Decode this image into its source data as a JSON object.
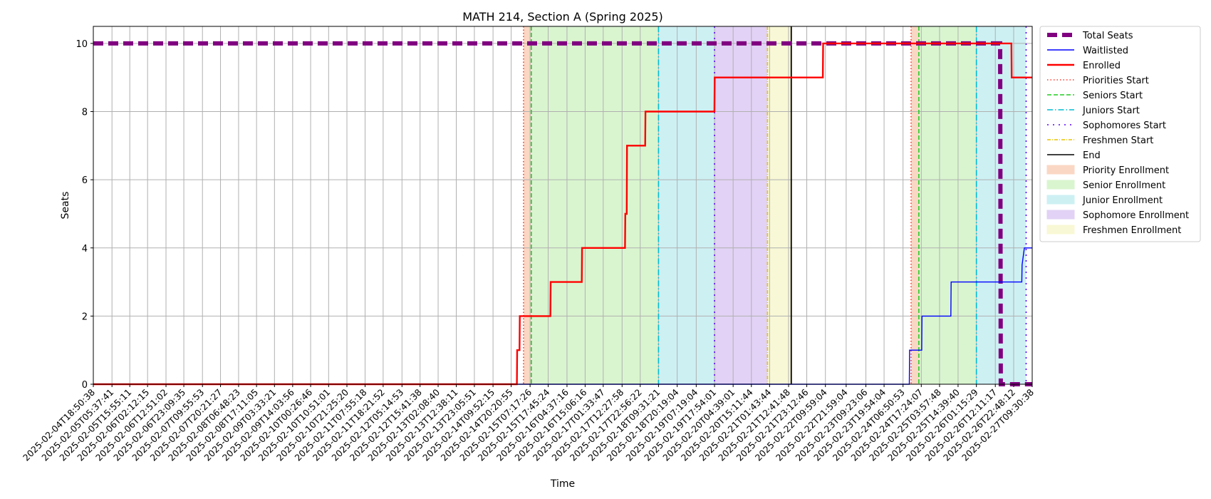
{
  "chart_data": {
    "type": "line",
    "title": "MATH 214, Section A (Spring 2025)",
    "xlabel": "Time",
    "ylabel": "Seats",
    "ylim": [
      0,
      10.5
    ],
    "yticks": [
      0,
      2,
      4,
      6,
      8,
      10
    ],
    "xlim": [
      "2025-02-04T18:50:38",
      "2025-02-27T09:30:38"
    ],
    "grid": true,
    "legend_position": "outside-right",
    "xtick_labels": [
      "2025-02-04T18:50:38",
      "2025-02-05T05:37:41",
      "2025-02-05T15:55:11",
      "2025-02-06T02:12:15",
      "2025-02-06T12:51:02",
      "2025-02-06T23:09:35",
      "2025-02-07T09:55:53",
      "2025-02-07T20:21:27",
      "2025-02-08T06:48:23",
      "2025-02-08T17:11:05",
      "2025-02-09T03:33:21",
      "2025-02-09T14:03:56",
      "2025-02-10T00:26:46",
      "2025-02-10T10:51:01",
      "2025-02-10T21:25:20",
      "2025-02-11T07:55:18",
      "2025-02-11T18:21:52",
      "2025-02-12T05:14:53",
      "2025-02-12T15:41:38",
      "2025-02-13T02:08:40",
      "2025-02-13T12:38:11",
      "2025-02-13T23:05:51",
      "2025-02-14T09:52:15",
      "2025-02-14T20:20:55",
      "2025-02-15T07:17:26",
      "2025-02-15T17:45:24",
      "2025-02-16T04:37:16",
      "2025-02-16T15:06:16",
      "2025-02-17T01:33:47",
      "2025-02-17T12:27:58",
      "2025-02-17T22:56:22",
      "2025-02-18T09:31:21",
      "2025-02-18T20:19:04",
      "2025-02-19T07:19:04",
      "2025-02-19T17:54:01",
      "2025-02-20T04:39:01",
      "2025-02-20T15:11:44",
      "2025-02-21T01:43:44",
      "2025-02-21T12:41:48",
      "2025-02-21T23:12:46",
      "2025-02-22T09:59:04",
      "2025-02-22T21:59:04",
      "2025-02-23T09:23:06",
      "2025-02-23T19:54:04",
      "2025-02-24T06:50:53",
      "2025-02-24T17:24:07",
      "2025-02-25T03:57:48",
      "2025-02-25T14:39:40",
      "2025-02-26T01:15:29",
      "2025-02-26T12:11:17",
      "2025-02-26T22:48:12",
      "2025-02-27T09:30:38"
    ],
    "series": [
      {
        "name": "Total Seats",
        "color": "#800080",
        "style": "dashed-thick",
        "points": [
          {
            "x": "2025-02-04T18:50:38",
            "y": 10
          },
          {
            "x": "2025-02-26T15:00:00",
            "y": 10
          },
          {
            "x": "2025-02-26T15:20:00",
            "y": 0
          },
          {
            "x": "2025-02-27T09:30:38",
            "y": 0
          }
        ]
      },
      {
        "name": "Waitlisted",
        "color": "#0000ff",
        "style": "solid",
        "points": [
          {
            "x": "2025-02-04T18:50:38",
            "y": 0
          },
          {
            "x": "2025-02-24T10:30:00",
            "y": 0
          },
          {
            "x": "2025-02-24T10:40:00",
            "y": 1
          },
          {
            "x": "2025-02-24T17:40:00",
            "y": 1
          },
          {
            "x": "2025-02-24T17:50:00",
            "y": 2
          },
          {
            "x": "2025-02-25T10:30:00",
            "y": 2
          },
          {
            "x": "2025-02-25T10:40:00",
            "y": 3
          },
          {
            "x": "2025-02-27T03:30:00",
            "y": 3
          },
          {
            "x": "2025-02-27T03:40:00",
            "y": 3.5
          },
          {
            "x": "2025-02-27T05:00:00",
            "y": 4
          },
          {
            "x": "2025-02-27T09:30:38",
            "y": 4
          }
        ]
      },
      {
        "name": "Enrolled",
        "color": "#ff0000",
        "style": "solid",
        "points": [
          {
            "x": "2025-02-04T18:50:38",
            "y": 0
          },
          {
            "x": "2025-02-14T23:40:00",
            "y": 0
          },
          {
            "x": "2025-02-14T23:50:00",
            "y": 1
          },
          {
            "x": "2025-02-15T01:10:00",
            "y": 1
          },
          {
            "x": "2025-02-15T01:20:00",
            "y": 2
          },
          {
            "x": "2025-02-15T19:00:00",
            "y": 2
          },
          {
            "x": "2025-02-15T19:10:00",
            "y": 3
          },
          {
            "x": "2025-02-16T13:10:00",
            "y": 3
          },
          {
            "x": "2025-02-16T13:20:00",
            "y": 4
          },
          {
            "x": "2025-02-17T14:10:00",
            "y": 4
          },
          {
            "x": "2025-02-17T14:20:00",
            "y": 5
          },
          {
            "x": "2025-02-17T15:10:00",
            "y": 5
          },
          {
            "x": "2025-02-17T15:20:00",
            "y": 7
          },
          {
            "x": "2025-02-18T01:50:00",
            "y": 7
          },
          {
            "x": "2025-02-18T02:00:00",
            "y": 8
          },
          {
            "x": "2025-02-19T17:50:00",
            "y": 8
          },
          {
            "x": "2025-02-19T18:00:00",
            "y": 9
          },
          {
            "x": "2025-02-22T08:30:00",
            "y": 9
          },
          {
            "x": "2025-02-22T08:40:00",
            "y": 10
          },
          {
            "x": "2025-02-26T21:30:00",
            "y": 10
          },
          {
            "x": "2025-02-26T21:40:00",
            "y": 9
          },
          {
            "x": "2025-02-27T09:30:38",
            "y": 9
          }
        ]
      }
    ],
    "vlines": [
      {
        "name": "Priorities Start",
        "color": "#ff3b30",
        "dash": "1.5,3",
        "times": [
          "2025-02-15T03:30:00",
          "2025-02-24T11:30:00"
        ]
      },
      {
        "name": "Seniors Start",
        "color": "#22cc22",
        "dash": "6,3",
        "times": [
          "2025-02-15T08:00:00",
          "2025-02-24T16:00:00"
        ]
      },
      {
        "name": "Juniors Start",
        "color": "#00bcd4",
        "dash": "8,3,1.5,3",
        "times": [
          "2025-02-18T09:31:21",
          "2025-02-26T01:15:29"
        ]
      },
      {
        "name": "Sophomores Start",
        "color": "#5a00ff",
        "dash": "2,6",
        "times": [
          "2025-02-19T17:54:01",
          "2025-02-27T06:00:00"
        ]
      },
      {
        "name": "Freshmen Start",
        "color": "#e8c400",
        "dash": "5,2,1,2",
        "times": [
          "2025-02-21T00:30:00"
        ]
      },
      {
        "name": "End",
        "color": "#000000",
        "dash": "",
        "times": [
          "2025-02-21T14:15:00"
        ]
      }
    ],
    "spans": [
      {
        "name": "Priority Enrollment",
        "color": "#fad7c4",
        "ranges": [
          [
            "2025-02-15T03:30:00",
            "2025-02-15T08:00:00"
          ],
          [
            "2025-02-24T11:30:00",
            "2025-02-24T16:00:00"
          ]
        ]
      },
      {
        "name": "Senior Enrollment",
        "color": "#d9f5cf",
        "ranges": [
          [
            "2025-02-15T08:00:00",
            "2025-02-18T09:31:21"
          ],
          [
            "2025-02-24T16:00:00",
            "2025-02-26T01:15:29"
          ]
        ]
      },
      {
        "name": "Junior Enrollment",
        "color": "#cdf0f3",
        "ranges": [
          [
            "2025-02-18T09:31:21",
            "2025-02-19T17:54:01"
          ],
          [
            "2025-02-26T01:15:29",
            "2025-02-27T06:00:00"
          ]
        ]
      },
      {
        "name": "Sophomore Enrollment",
        "color": "#e2d2f5",
        "ranges": [
          [
            "2025-02-19T17:54:01",
            "2025-02-21T00:30:00"
          ]
        ]
      },
      {
        "name": "Freshmen Enrollment",
        "color": "#f8f8d6",
        "ranges": [
          [
            "2025-02-21T00:30:00",
            "2025-02-21T14:15:00"
          ]
        ]
      }
    ]
  }
}
